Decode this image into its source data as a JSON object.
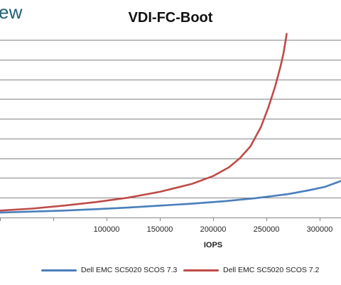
{
  "header": {
    "brand_fragment": "ew"
  },
  "chart_data": {
    "type": "line",
    "title": "VDI-FC-Boot",
    "xlabel": "IOPS",
    "ylabel": "",
    "xlim": [
      0,
      320000
    ],
    "ylim": [
      0,
      9
    ],
    "grid": "horizontal",
    "legend_position": "bottom",
    "x_ticks": [
      100000,
      150000,
      200000,
      250000,
      300000
    ],
    "x_tick_labels": [
      "100000",
      "150000",
      "200000",
      "250000",
      "300000"
    ],
    "series": [
      {
        "name": "Dell EMC SC5020 SCOS 7.3",
        "color": "#4a7ebb",
        "x": [
          0,
          30000,
          60000,
          90000,
          120000,
          150000,
          180000,
          210000,
          240000,
          270000,
          290000,
          305000,
          315000,
          320000
        ],
        "y": [
          0.25,
          0.3,
          0.35,
          0.42,
          0.5,
          0.6,
          0.7,
          0.82,
          0.98,
          1.18,
          1.38,
          1.55,
          1.75,
          1.85
        ]
      },
      {
        "name": "Dell EMC SC5020 SCOS 7.2",
        "color": "#be4b48",
        "x": [
          0,
          30000,
          60000,
          90000,
          120000,
          150000,
          180000,
          200000,
          215000,
          225000,
          235000,
          245000,
          252000,
          258000,
          263000,
          266000,
          268000,
          269000
        ],
        "y": [
          0.35,
          0.45,
          0.6,
          0.78,
          1.0,
          1.3,
          1.7,
          2.1,
          2.55,
          3.0,
          3.6,
          4.6,
          5.6,
          6.6,
          7.6,
          8.3,
          8.95,
          9.3
        ]
      }
    ]
  }
}
